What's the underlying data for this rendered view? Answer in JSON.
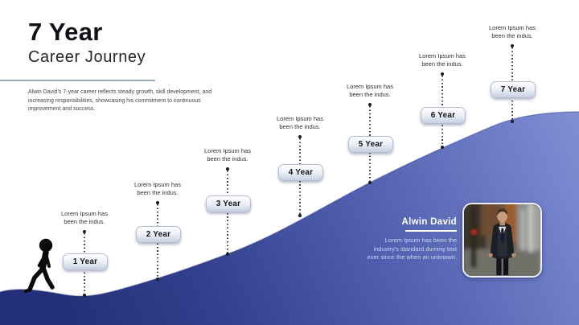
{
  "slide": {
    "title": "7 Year",
    "subtitle": "Career Journey",
    "description": "Alwin David's 7-year career reflects steady growth, skill development, and increasing responsibilities, showcasing his commitment to continuous improvement and success."
  },
  "milestones": [
    {
      "label": "1 Year",
      "note": "Lorem Ipsum has been the indus."
    },
    {
      "label": "2 Year",
      "note": "Lorem Ipsum has been the indus."
    },
    {
      "label": "3 Year",
      "note": "Lorem Ipsum has been the indus."
    },
    {
      "label": "4 Year",
      "note": "Lorem Ipsum has been the indus."
    },
    {
      "label": "5 Year",
      "note": "Lorem Ipsum has been the indus."
    },
    {
      "label": "6 Year",
      "note": "Lorem Ipsum has been the indus."
    },
    {
      "label": "7 Year",
      "note": "Lorem Ipsum has been the indus."
    }
  ],
  "profile": {
    "name": "Alwin David",
    "bio": "Lorem Ipsum has been the industry's standard dummy text ever since the when an unknown."
  },
  "colors": {
    "wave_top": "#7e8dd3",
    "wave_mid": "#45549f",
    "wave_bottom": "#222e74",
    "divider": "#9fabbe",
    "badge_face": "#e9edf5"
  }
}
